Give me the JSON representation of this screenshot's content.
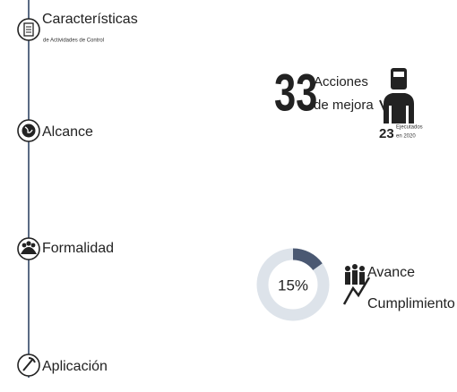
{
  "timeline": {
    "items": [
      {
        "label": "Características",
        "subtitle": "de Actividades de Control"
      },
      {
        "label": "Alcance"
      },
      {
        "label": "Formalidad"
      },
      {
        "label": "Aplicación"
      }
    ]
  },
  "acciones": {
    "number": "33",
    "line1": "Acciones",
    "line2": "de mejora",
    "executed": "23",
    "executed_line1": "Ejecutados",
    "executed_line2": "en 2020"
  },
  "avance": {
    "value": 15,
    "value_label": "15%",
    "line1": "Avance",
    "line2": "Cumplimiento"
  }
}
